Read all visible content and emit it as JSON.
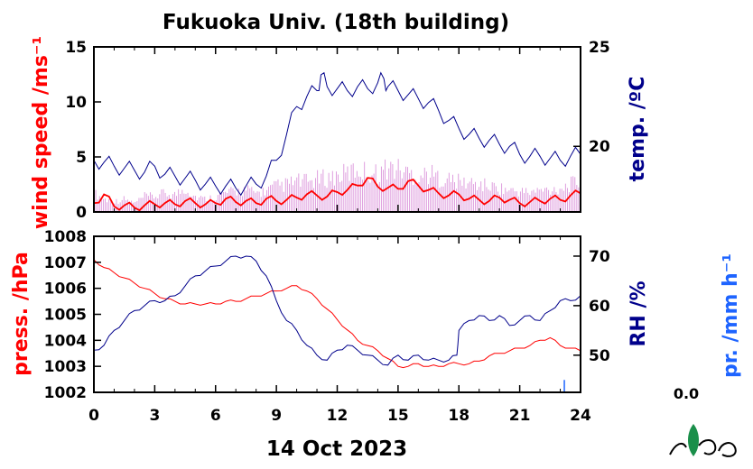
{
  "title": "Fukuoka Univ. (18th building)",
  "x_label": "14 Oct 2023",
  "pr_value": "0.0",
  "chart_data": [
    {
      "type": "line",
      "panel": "top",
      "xlim": [
        0,
        24
      ],
      "x_ticks": [
        "0",
        "3",
        "6",
        "9",
        "12",
        "15",
        "18",
        "21",
        "24"
      ],
      "left_axis": {
        "label": "wind speed /ms⁻¹",
        "ylim": [
          0,
          15
        ],
        "ticks": [
          "0",
          "5",
          "10",
          "15"
        ],
        "color": "#ff0000"
      },
      "right_axis": {
        "label": "temp. /ºC",
        "ylim": [
          16.7,
          25
        ],
        "ticks": [
          "20",
          "25"
        ],
        "color": "#00008b"
      },
      "series": [
        {
          "axis": "left",
          "kind": "wind_gust",
          "color": "#cc66cc",
          "x": [
            0,
            0.5,
            1,
            1.5,
            2,
            2.5,
            3,
            3.5,
            4,
            4.5,
            5,
            5.5,
            6,
            6.5,
            7,
            7.5,
            8,
            8.5,
            9,
            9.5,
            10,
            10.5,
            11,
            11.5,
            12,
            12.5,
            13,
            13.5,
            14,
            14.5,
            15,
            15.5,
            16,
            16.5,
            17,
            17.5,
            18,
            18.5,
            19,
            19.5,
            20,
            20.5,
            21,
            21.5,
            22,
            22.5,
            23,
            23.5,
            24
          ],
          "y": [
            2.2,
            1.5,
            1.2,
            1.5,
            1.0,
            1.8,
            1.8,
            2.2,
            2.0,
            2.8,
            1.8,
            1.5,
            1.8,
            2.2,
            2.4,
            2.6,
            2.2,
            2.5,
            3.0,
            3.2,
            3.6,
            3.5,
            3.8,
            4.0,
            4.2,
            4.5,
            5.0,
            4.6,
            4.5,
            5.2,
            5.0,
            4.6,
            4.2,
            4.5,
            4.0,
            3.8,
            3.5,
            3.4,
            3.2,
            3.0,
            2.8,
            2.5,
            2.4,
            2.3,
            2.5,
            2.6,
            2.8,
            3.2,
            3.6
          ]
        },
        {
          "axis": "left",
          "name": "",
          "color": "#ff0000",
          "x": [
            0,
            0.5,
            1,
            1.5,
            2,
            2.5,
            3,
            3.5,
            4,
            4.5,
            5,
            5.5,
            6,
            6.5,
            7,
            7.5,
            8,
            8.5,
            9,
            9.5,
            10,
            10.5,
            11,
            11.5,
            12,
            12.5,
            13,
            13.5,
            14,
            14.5,
            15,
            15.5,
            16,
            16.5,
            17,
            17.5,
            18,
            18.5,
            19,
            19.5,
            20,
            20.5,
            21,
            21.5,
            22,
            22.5,
            23,
            23.5,
            24
          ],
          "y": [
            0.8,
            1.6,
            0.5,
            0.6,
            0.4,
            0.6,
            0.7,
            0.8,
            0.7,
            1.0,
            0.8,
            0.7,
            0.8,
            1.2,
            0.9,
            1.0,
            0.8,
            1.2,
            1.0,
            1.1,
            1.3,
            1.6,
            1.5,
            1.4,
            1.8,
            2.0,
            2.4,
            3.1,
            2.3,
            2.2,
            2.1,
            2.8,
            2.4,
            2.0,
            1.7,
            1.5,
            1.6,
            1.2,
            1.1,
            1.0,
            1.3,
            1.1,
            0.8,
            0.9,
            1.0,
            1.2,
            1.1,
            1.5,
            1.7
          ]
        },
        {
          "axis": "right",
          "name": "",
          "color": "#00008b",
          "x": [
            0,
            0.5,
            1,
            1.5,
            2,
            2.5,
            3,
            3.5,
            4,
            4.5,
            5,
            5.5,
            6,
            6.5,
            7,
            7.5,
            8,
            8.5,
            9,
            9.5,
            10,
            10.5,
            11,
            11.2,
            11.5,
            12,
            12.5,
            13,
            13.5,
            14,
            14.3,
            14.5,
            15,
            15.5,
            16,
            16.5,
            17,
            17.5,
            18,
            18.5,
            19,
            19.5,
            20,
            20.5,
            21,
            21.5,
            22,
            22.5,
            23,
            23.5,
            24
          ],
          "y": [
            19.3,
            19.2,
            19.0,
            18.9,
            18.8,
            18.7,
            19.0,
            18.6,
            18.5,
            18.4,
            18.3,
            18.1,
            18.0,
            18.0,
            17.9,
            18.0,
            18.1,
            18.5,
            19.3,
            20.6,
            22.0,
            22.5,
            22.8,
            23.6,
            23.0,
            22.9,
            22.8,
            23.0,
            22.9,
            23.2,
            23.4,
            23.0,
            22.8,
            22.6,
            22.4,
            22.2,
            21.8,
            21.3,
            20.9,
            20.6,
            20.4,
            20.3,
            20.1,
            20.0,
            19.6,
            19.5,
            19.5,
            19.4,
            19.3,
            19.5,
            19.6
          ]
        }
      ]
    },
    {
      "type": "line",
      "panel": "bottom",
      "xlim": [
        0,
        24
      ],
      "x_ticks": [
        "0",
        "3",
        "6",
        "9",
        "12",
        "15",
        "18",
        "21",
        "24"
      ],
      "left_axis": {
        "label": "press. /hPa",
        "ylim": [
          1002,
          1008
        ],
        "ticks": [
          "1002",
          "1003",
          "1004",
          "1005",
          "1006",
          "1007",
          "1008"
        ],
        "color": "#ff0000"
      },
      "right_axis": {
        "label": "RH /%",
        "ylim": [
          42.5,
          74
        ],
        "ticks": [
          "50",
          "60",
          "70"
        ],
        "color": "#00008b"
      },
      "extra_axis": {
        "label": "pr. /mm h⁻¹",
        "color": "#1e64ff"
      },
      "series": [
        {
          "axis": "left",
          "name": "",
          "color": "#ff0000",
          "x": [
            0,
            0.5,
            1,
            1.5,
            2,
            2.5,
            3,
            3.5,
            4,
            4.5,
            5,
            5.5,
            6,
            6.5,
            7,
            7.5,
            8,
            8.5,
            9,
            9.5,
            10,
            10.5,
            11,
            11.5,
            12,
            12.5,
            13,
            13.5,
            14,
            14.5,
            15,
            15.5,
            16,
            16.5,
            17,
            17.5,
            18,
            18.5,
            19,
            19.5,
            20,
            20.5,
            21,
            21.5,
            22,
            22.5,
            23,
            23.5,
            24
          ],
          "y": [
            1007.1,
            1006.8,
            1006.6,
            1006.4,
            1006.2,
            1006.0,
            1005.8,
            1005.6,
            1005.5,
            1005.4,
            1005.4,
            1005.4,
            1005.4,
            1005.5,
            1005.5,
            1005.6,
            1005.7,
            1005.8,
            1005.9,
            1006.0,
            1006.1,
            1005.9,
            1005.6,
            1005.2,
            1004.8,
            1004.4,
            1004.0,
            1003.8,
            1003.6,
            1003.3,
            1003.0,
            1003.0,
            1003.1,
            1003.0,
            1003.0,
            1003.1,
            1003.1,
            1003.1,
            1003.2,
            1003.4,
            1003.5,
            1003.6,
            1003.7,
            1003.8,
            1004.0,
            1004.1,
            1003.8,
            1003.7,
            1003.6
          ]
        },
        {
          "axis": "right",
          "name": "",
          "color": "#00008b",
          "x": [
            0,
            0.5,
            1,
            1.5,
            2,
            2.5,
            3,
            3.5,
            4,
            4.5,
            5,
            5.5,
            6,
            6.5,
            7,
            7.5,
            8,
            8.5,
            9,
            9.5,
            10,
            10.5,
            11,
            11.5,
            12,
            12.5,
            13,
            13.5,
            14,
            14.5,
            15,
            15.5,
            16,
            16.5,
            17,
            17.5,
            17.9,
            18,
            18.5,
            19,
            19.5,
            20,
            20.5,
            21,
            21.5,
            22,
            22.5,
            23,
            23.5,
            24
          ],
          "y": [
            51,
            52,
            55,
            57,
            59,
            60,
            61,
            61,
            62,
            64,
            66,
            67,
            68,
            69,
            70,
            70,
            69,
            66,
            61,
            57,
            55,
            52,
            50,
            49,
            51,
            52,
            51,
            50,
            49,
            48,
            50,
            49,
            50,
            49,
            49,
            49,
            50,
            55,
            57,
            58,
            57,
            58,
            56,
            57,
            58,
            57,
            59,
            61,
            61,
            62
          ]
        },
        {
          "axis": "extra",
          "kind": "precip_spike",
          "color": "#1e64ff",
          "x": [
            23.2
          ],
          "y": [
            45
          ]
        }
      ]
    }
  ]
}
